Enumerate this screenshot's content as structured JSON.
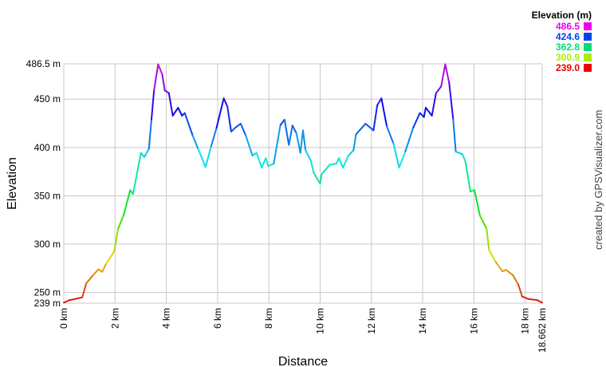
{
  "chart_data": {
    "type": "line",
    "xlabel": "Distance",
    "ylabel": "Elevation",
    "xlim": [
      0,
      18.662
    ],
    "ylim": [
      239.0,
      486.5
    ],
    "grid": true,
    "x_ticks": [
      0,
      2,
      4,
      6,
      8,
      10,
      12,
      14,
      16,
      18,
      18.662
    ],
    "x_tick_labels": [
      "0 km",
      "2 km",
      "4 km",
      "6 km",
      "8 km",
      "10 km",
      "12 km",
      "14 km",
      "16 km",
      "18 km",
      "18.662 km"
    ],
    "y_ticks": [
      486.5,
      450,
      400,
      350,
      300,
      250,
      239
    ],
    "y_tick_labels": [
      "486.5 m",
      "450 m",
      "400 m",
      "350 m",
      "300 m",
      "250 m",
      "239 m"
    ],
    "color_mode": "gradient by elevation (red → yellow → green → cyan → blue → magenta)",
    "legend": {
      "title": "Elevation (m)",
      "placement": "top-right",
      "entries": [
        {
          "label": "486.5",
          "color": "#ee00ee"
        },
        {
          "label": "424.6",
          "color": "#0044ee"
        },
        {
          "label": "362.8",
          "color": "#00dd77"
        },
        {
          "label": "300.9",
          "color": "#aaee00"
        },
        {
          "label": "239.0",
          "color": "#ee0000"
        }
      ]
    },
    "points": [
      [
        0,
        239.5
      ],
      [
        0.21,
        242
      ],
      [
        0.72,
        245
      ],
      [
        0.88,
        259.6
      ],
      [
        1.14,
        267.9
      ],
      [
        1.35,
        273.9
      ],
      [
        1.5,
        271.4
      ],
      [
        1.66,
        280.2
      ],
      [
        1.97,
        292.6
      ],
      [
        2.12,
        316
      ],
      [
        2.33,
        329.7
      ],
      [
        2.59,
        355.9
      ],
      [
        2.7,
        351.8
      ],
      [
        3.01,
        394.4
      ],
      [
        3.14,
        390.2
      ],
      [
        3.32,
        398.5
      ],
      [
        3.42,
        428.8
      ],
      [
        3.52,
        459
      ],
      [
        3.68,
        486
      ],
      [
        3.84,
        475.5
      ],
      [
        3.94,
        459
      ],
      [
        4.1,
        456.2
      ],
      [
        4.25,
        432.9
      ],
      [
        4.46,
        441.1
      ],
      [
        4.61,
        432.9
      ],
      [
        4.72,
        435.6
      ],
      [
        5.03,
        412.3
      ],
      [
        5.24,
        398.5
      ],
      [
        5.53,
        379.8
      ],
      [
        5.75,
        401.3
      ],
      [
        5.96,
        420.5
      ],
      [
        6.24,
        450.8
      ],
      [
        6.38,
        442.5
      ],
      [
        6.53,
        416.4
      ],
      [
        6.69,
        420.5
      ],
      [
        6.9,
        424.6
      ],
      [
        7.1,
        412.3
      ],
      [
        7.36,
        391.6
      ],
      [
        7.52,
        394.4
      ],
      [
        7.72,
        379.2
      ],
      [
        7.88,
        388.9
      ],
      [
        7.98,
        380.6
      ],
      [
        8.19,
        383.3
      ],
      [
        8.45,
        423.2
      ],
      [
        8.61,
        428.8
      ],
      [
        8.78,
        402.6
      ],
      [
        8.92,
        422.7
      ],
      [
        9.07,
        415
      ],
      [
        9.23,
        394.4
      ],
      [
        9.33,
        417.7
      ],
      [
        9.43,
        397.1
      ],
      [
        9.64,
        386.1
      ],
      [
        9.75,
        373.7
      ],
      [
        10.0,
        362.7
      ],
      [
        10.06,
        372.4
      ],
      [
        10.37,
        382
      ],
      [
        10.63,
        383.3
      ],
      [
        10.73,
        388.9
      ],
      [
        10.89,
        379.2
      ],
      [
        11.1,
        391.6
      ],
      [
        11.3,
        397.1
      ],
      [
        11.4,
        413.6
      ],
      [
        11.77,
        424.6
      ],
      [
        12.08,
        417.7
      ],
      [
        12.23,
        443.9
      ],
      [
        12.39,
        450.8
      ],
      [
        12.6,
        421.9
      ],
      [
        12.86,
        404
      ],
      [
        13.08,
        379.2
      ],
      [
        13.32,
        395.7
      ],
      [
        13.63,
        420.5
      ],
      [
        13.89,
        435.6
      ],
      [
        14.05,
        431.5
      ],
      [
        14.12,
        441.1
      ],
      [
        14.36,
        432.9
      ],
      [
        14.52,
        456.2
      ],
      [
        14.72,
        463.1
      ],
      [
        14.88,
        486
      ],
      [
        15.03,
        467.3
      ],
      [
        15.19,
        428.8
      ],
      [
        15.29,
        395.7
      ],
      [
        15.55,
        393
      ],
      [
        15.66,
        386.1
      ],
      [
        15.86,
        354.5
      ],
      [
        16.02,
        355.9
      ],
      [
        16.23,
        329.7
      ],
      [
        16.49,
        316
      ],
      [
        16.59,
        294
      ],
      [
        16.85,
        281.6
      ],
      [
        17.11,
        272
      ],
      [
        17.26,
        273.3
      ],
      [
        17.52,
        267.9
      ],
      [
        17.73,
        258.2
      ],
      [
        17.88,
        245.9
      ],
      [
        18.14,
        243.2
      ],
      [
        18.45,
        242.3
      ],
      [
        18.662,
        239.5
      ]
    ]
  },
  "credit": "created by GPSVisualizer.com"
}
